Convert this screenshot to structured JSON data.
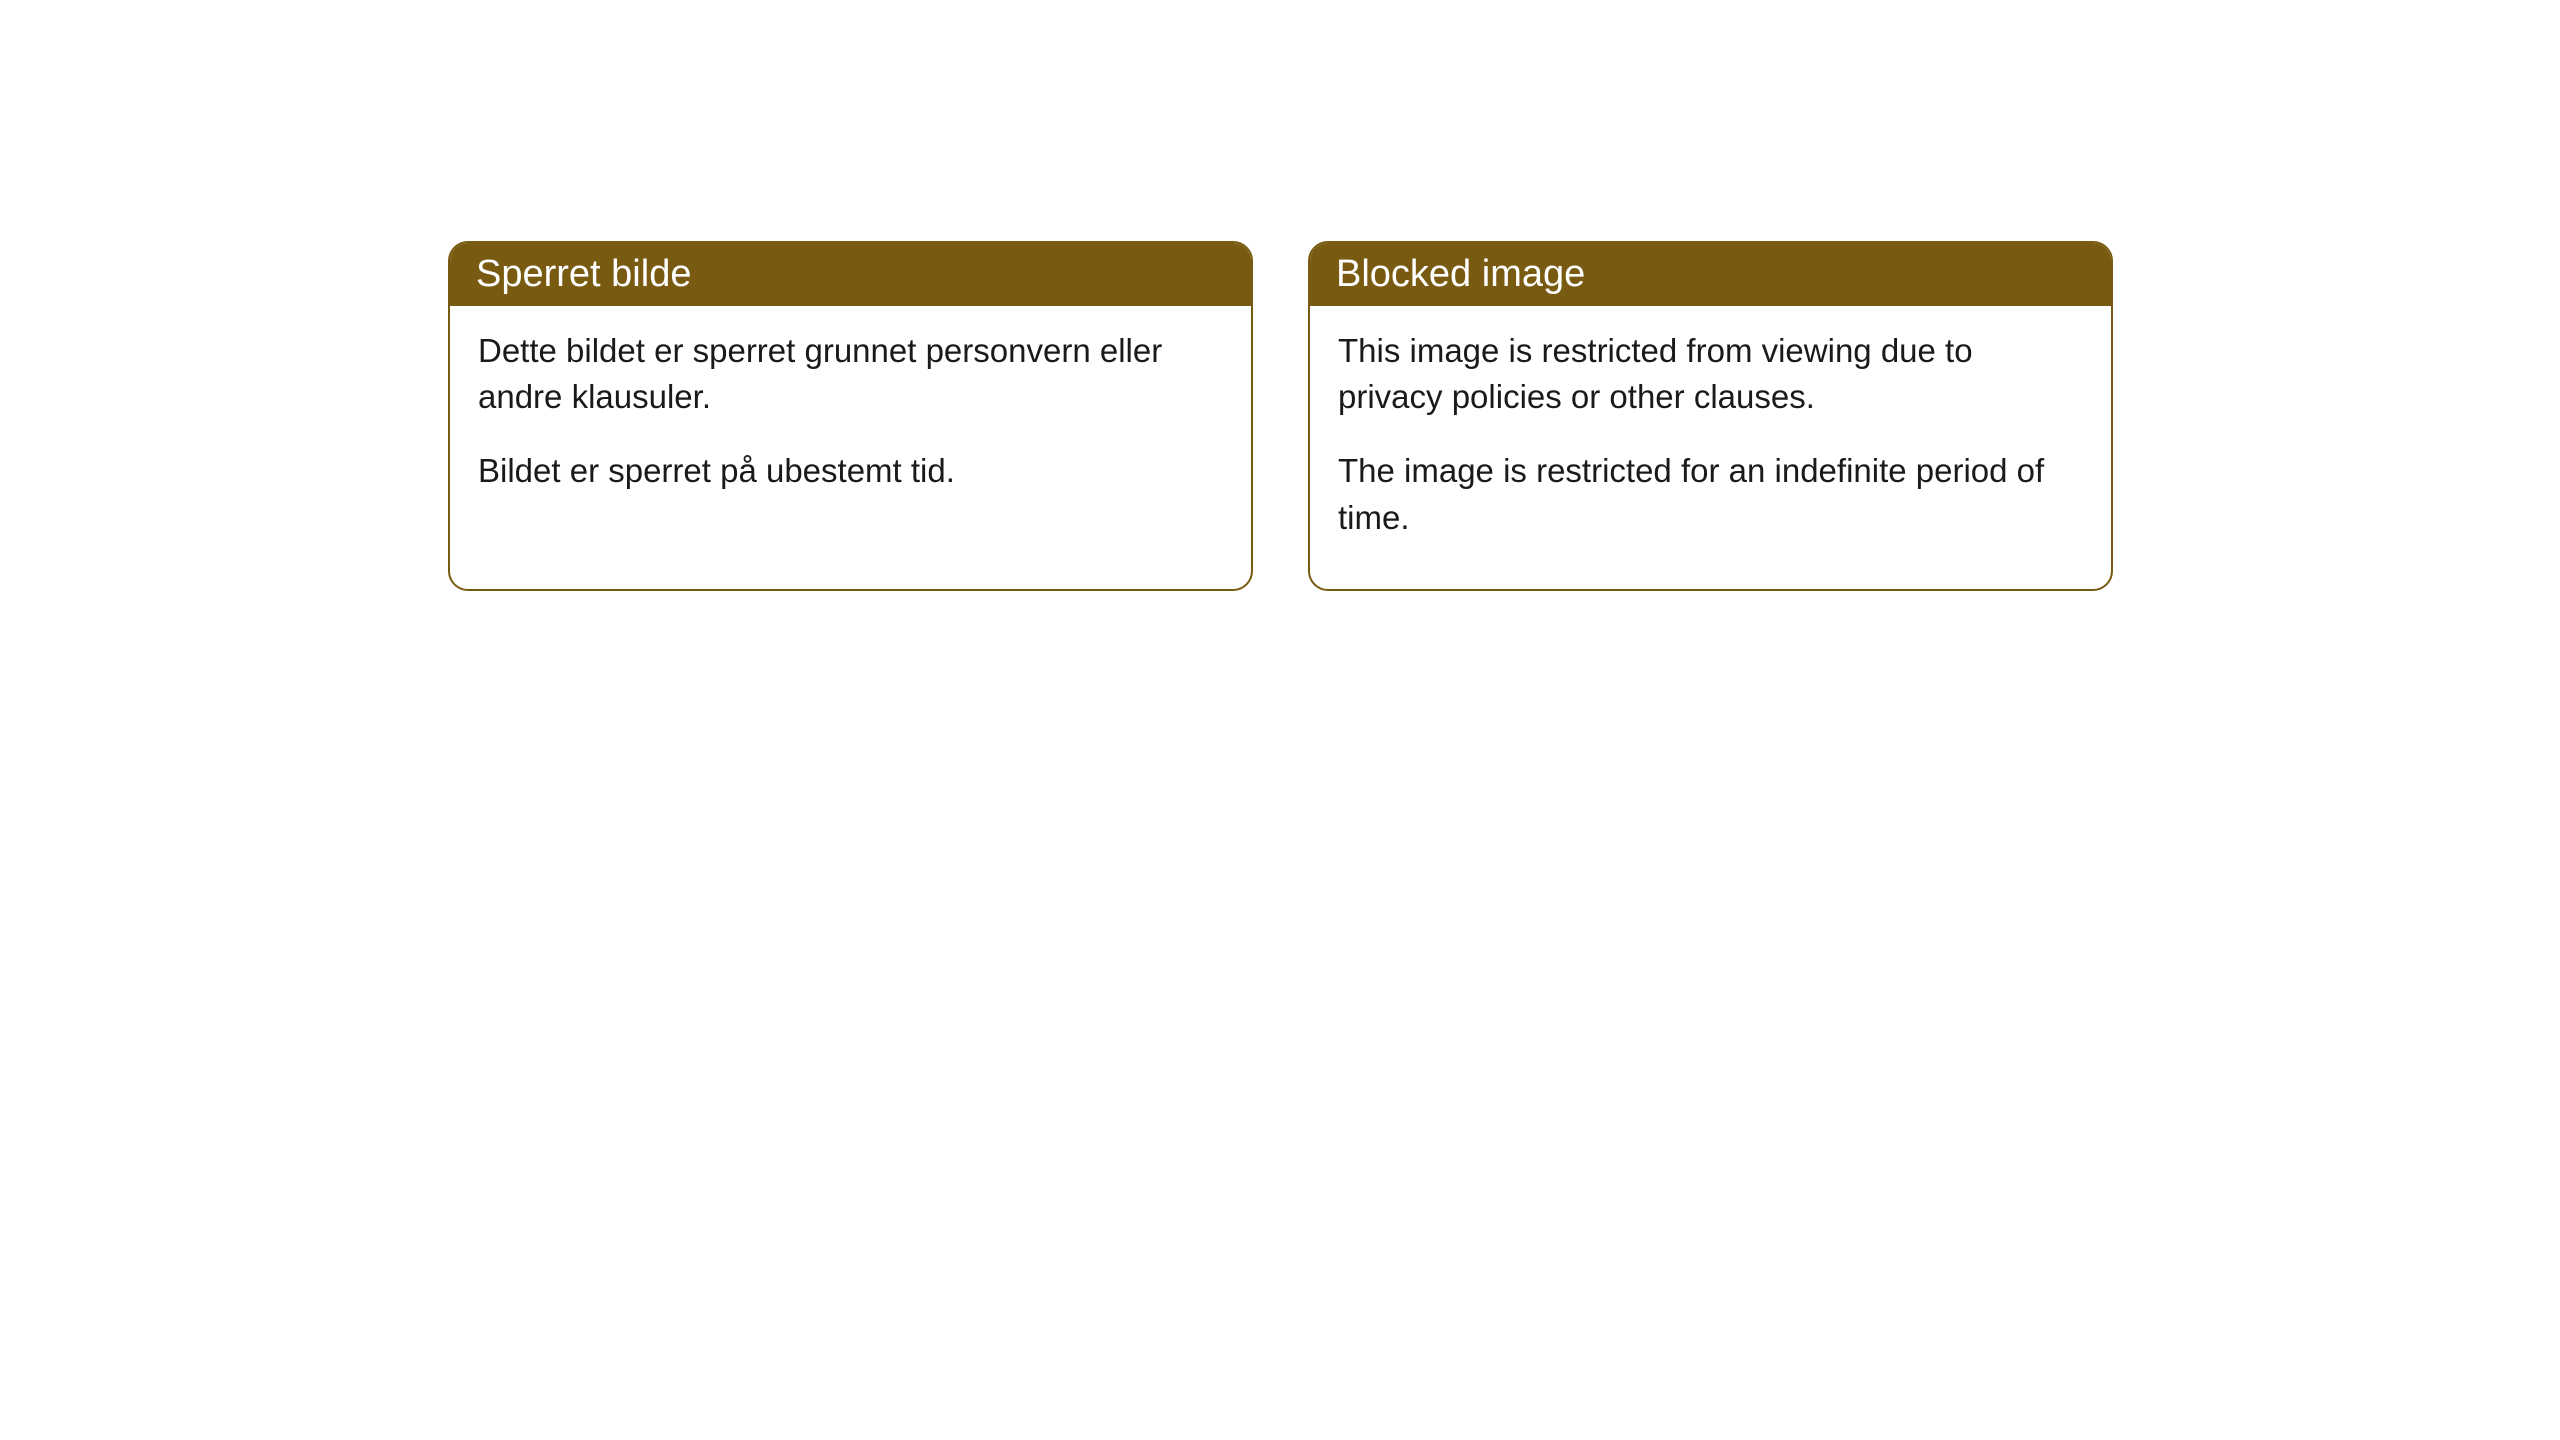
{
  "cards": [
    {
      "title": "Sperret bilde",
      "paragraph1": "Dette bildet er sperret grunnet personvern eller andre klausuler.",
      "paragraph2": "Bildet er sperret på ubestemt tid."
    },
    {
      "title": "Blocked image",
      "paragraph1": "This image is restricted from viewing due to privacy policies or other clauses.",
      "paragraph2": "The image is restricted for an indefinite period of time."
    }
  ],
  "styles": {
    "header_bg_color": "#785a10",
    "header_text_color": "#ffffff",
    "border_color": "#785a10",
    "body_bg_color": "#ffffff",
    "body_text_color": "#1a1a1a",
    "border_radius": 20,
    "header_fontsize": 38,
    "body_fontsize": 33
  }
}
